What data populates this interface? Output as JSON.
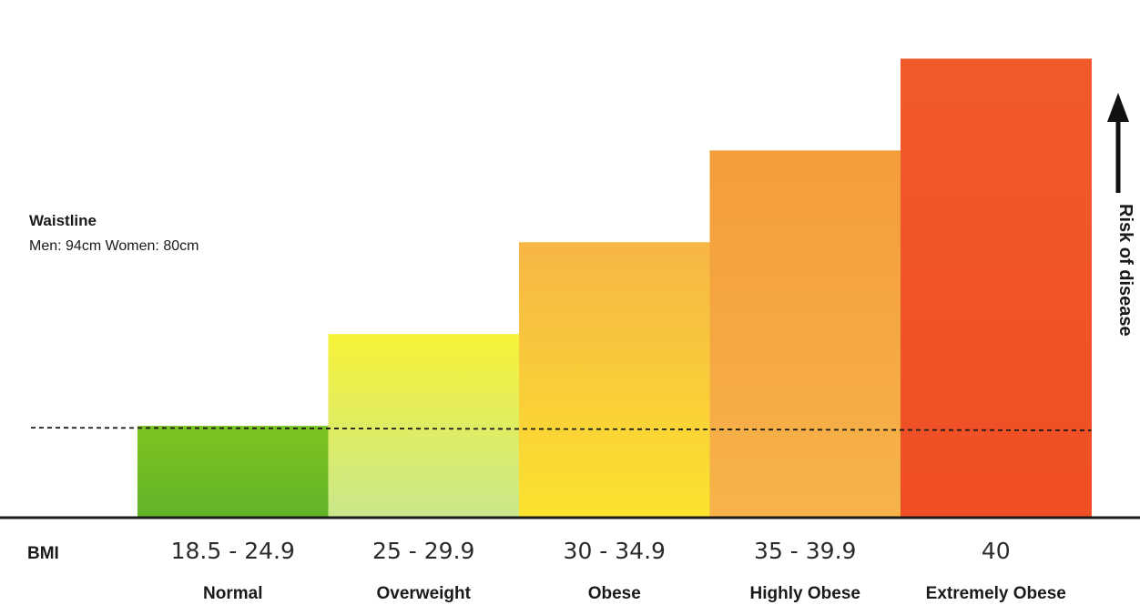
{
  "chart_data": {
    "type": "bar",
    "row_label": "BMI",
    "categories": [
      "18.5 - 24.9",
      "25 - 29.9",
      "30 - 34.9",
      "35 - 39.9",
      "40"
    ],
    "category_names": [
      "Normal",
      "Overweight",
      "Obese",
      "Highly Obese",
      "Extremely Obese"
    ],
    "values": [
      1,
      2,
      3,
      4,
      5
    ],
    "ylim": [
      0,
      5.5
    ],
    "ylabel": "Risk of disease",
    "grid": false,
    "legend": "none",
    "reference_line": {
      "title": "Waistline",
      "subtitle": "Men: 94cm Women: 80cm",
      "value": 1
    },
    "colors": {
      "Normal": [
        "#7cc421",
        "#63b329"
      ],
      "Overweight": [
        "#f7f238",
        "#c9e88d"
      ],
      "Obese": [
        "#f7b545",
        "#fbe32e"
      ],
      "Highly Obese": [
        "#f39d3a",
        "#f7b34a"
      ],
      "Extremely Obese": [
        "#f05a2a",
        "#f04e25"
      ]
    }
  }
}
